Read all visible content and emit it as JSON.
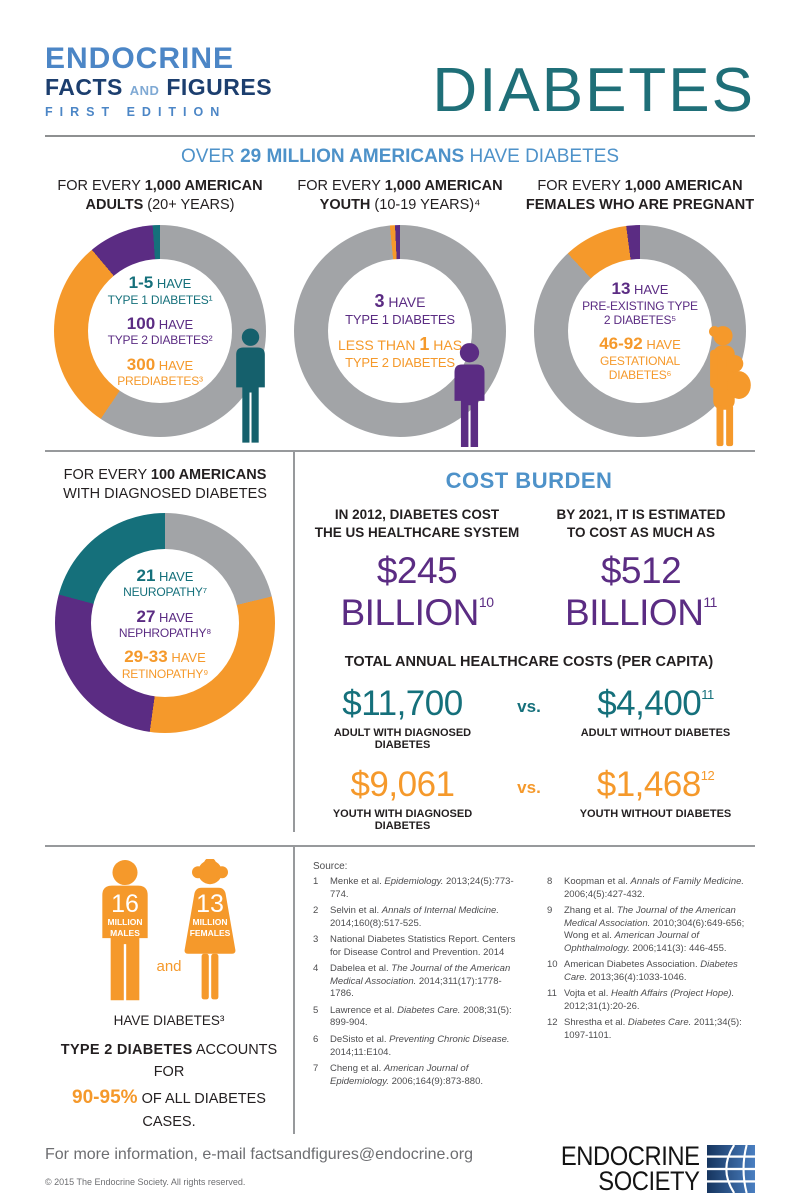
{
  "colors": {
    "orange": "#F5992B",
    "purple": "#5B2C83",
    "teal": "#15707B",
    "donut_gray": "#A2A4A7",
    "heading_blue": "#4E92C9",
    "brand_navy": "#1C3E6E",
    "brand_blue": "#4C86C6",
    "title_teal": "#1F6F78",
    "dark_text": "#231F20",
    "line_gray": "#97999C",
    "footer_gray": "#6D6E71"
  },
  "header": {
    "brand_line1": "ENDOCRINE",
    "brand_line2_a": "FACTS ",
    "brand_line2_and": "AND",
    "brand_line2_b": " FIGURES",
    "brand_line3": "FIRST EDITION",
    "title": "DIABETES",
    "subtitle_pre": "OVER ",
    "subtitle_bold": "29 MILLION AMERICANS",
    "subtitle_post": " HAVE DIABETES"
  },
  "donuts": [
    {
      "h1pre": "FOR EVERY ",
      "h1bold": "1,000 AMERICAN",
      "h2bold": "ADULTS",
      "h2rest": " (20+ YEARS)",
      "stats": [
        {
          "pre": "",
          "num": "1-5",
          "rest": " HAVE",
          "label": "TYPE 1 DIABETES¹"
        },
        {
          "pre": "",
          "num": "100",
          "rest": " HAVE",
          "label": "TYPE 2 DIABETES²"
        },
        {
          "pre": "",
          "num": "300",
          "rest": " HAVE",
          "label": "PREDIABETES³"
        }
      ]
    },
    {
      "h1pre": "FOR EVERY ",
      "h1bold": "1,000 AMERICAN",
      "h2bold": "YOUTH",
      "h2rest": " (10-19 YEARS)⁴",
      "stats": [
        {
          "pre": "",
          "num": "3",
          "rest": " HAVE",
          "label": "TYPE 1 DIABETES"
        },
        {
          "pre": "LESS THAN ",
          "num": "1",
          "rest": " HAS",
          "label": "TYPE 2 DIABETES"
        }
      ]
    },
    {
      "h1pre": "FOR EVERY ",
      "h1bold": "1,000 AMERICAN",
      "h2bold": "FEMALES WHO ARE PREGNANT",
      "h2rest": "",
      "stats": [
        {
          "pre": "",
          "num": "13",
          "rest": " HAVE",
          "label": "PRE-EXISTING TYPE 2 DIABETES⁵"
        },
        {
          "pre": "",
          "num": "46-92",
          "rest": " HAVE",
          "label": "GESTATIONAL DIABETES⁶"
        }
      ]
    },
    {
      "h1pre": "FOR EVERY ",
      "h1bold": "100 AMERICANS",
      "h2bold": "",
      "h2rest": "WITH DIAGNOSED DIABETES",
      "stats": [
        {
          "pre": "",
          "num": "21",
          "rest": " HAVE",
          "label": "NEUROPATHY⁷"
        },
        {
          "pre": "",
          "num": "27",
          "rest": " HAVE",
          "label": "NEPHROPATHY⁸"
        },
        {
          "pre": "",
          "num": "29-33",
          "rest": " HAVE",
          "label": "RETINOPATHY⁹"
        }
      ]
    }
  ],
  "cost": {
    "title": "COST BURDEN",
    "blocks": [
      {
        "line1": "IN 2012, DIABETES COST",
        "line2": "THE US HEALTHCARE SYSTEM",
        "amount": "$245 BILLION",
        "sup": "10"
      },
      {
        "line1": "BY 2021, IT IS ESTIMATED",
        "line2": "TO COST AS MUCH AS",
        "amount": "$512 BILLION",
        "sup": "11"
      }
    ],
    "percap_title": "TOTAL ANNUAL HEALTHCARE COSTS (PER CAPITA)",
    "rows": [
      {
        "left_amount": "$11,700",
        "left_sup": "",
        "left_label": "ADULT WITH DIAGNOSED DIABETES",
        "vs": "vs.",
        "right_amount": "$4,400",
        "right_sup": "11",
        "right_label": "ADULT WITHOUT DIABETES"
      },
      {
        "left_amount": "$9,061",
        "left_sup": "",
        "left_label": "YOUTH WITH DIAGNOSED DIABETES",
        "vs": "vs.",
        "right_amount": "$1,468",
        "right_sup": "12",
        "right_label": "YOUTH WITHOUT DIABETES"
      }
    ]
  },
  "population": {
    "male_num": "16",
    "male_line1": "MILLION",
    "male_line2": "MALES",
    "female_num": "13",
    "female_line1": "MILLION",
    "female_line2": "FEMALES",
    "and_label": "and",
    "caption": "HAVE DIABETES³",
    "type2_bold": "TYPE 2 DIABETES",
    "type2_rest": " ACCOUNTS FOR",
    "pct": "90-95%",
    "pct_rest": " OF ALL DIABETES CASES."
  },
  "sources": {
    "label": "Source:",
    "col1": [
      {
        "n": "1",
        "segs": [
          [
            "Menke et al. ",
            false
          ],
          [
            "Epidemiology.",
            true
          ],
          [
            " 2013;24(5):773-774.",
            false
          ]
        ]
      },
      {
        "n": "2",
        "segs": [
          [
            "Selvin et al. ",
            false
          ],
          [
            "Annals of Internal Medicine.",
            true
          ],
          [
            " 2014;160(8):517-525.",
            false
          ]
        ]
      },
      {
        "n": "3",
        "segs": [
          [
            "National Diabetes Statistics Report. Centers for Disease Control and Prevention. 2014",
            false
          ]
        ]
      },
      {
        "n": "4",
        "segs": [
          [
            "Dabelea et al. ",
            false
          ],
          [
            "The Journal of the American Medical Association.",
            true
          ],
          [
            " 2014;311(17):1778-1786.",
            false
          ]
        ]
      },
      {
        "n": "5",
        "segs": [
          [
            "Lawrence et al. ",
            false
          ],
          [
            "Diabetes Care.",
            true
          ],
          [
            " 2008;31(5): 899-904.",
            false
          ]
        ]
      },
      {
        "n": "6",
        "segs": [
          [
            "DeSisto et al. ",
            false
          ],
          [
            "Preventing Chronic Disease.",
            true
          ],
          [
            " 2014;11:E104.",
            false
          ]
        ]
      },
      {
        "n": "7",
        "segs": [
          [
            "Cheng et al. ",
            false
          ],
          [
            "American Journal of Epidemiology.",
            true
          ],
          [
            " 2006;164(9):873-880.",
            false
          ]
        ]
      }
    ],
    "col2": [
      {
        "n": "8",
        "segs": [
          [
            "Koopman et al. ",
            false
          ],
          [
            "Annals of Family Medicine.",
            true
          ],
          [
            " 2006;4(5):427-432.",
            false
          ]
        ]
      },
      {
        "n": "9",
        "segs": [
          [
            "Zhang et al. ",
            false
          ],
          [
            "The Journal of the American Medical Association.",
            true
          ],
          [
            " 2010;304(6):649-656; Wong et al. ",
            false
          ],
          [
            "American Journal of Ophthalmology.",
            true
          ],
          [
            " 2006;141(3): 446-455.",
            false
          ]
        ]
      },
      {
        "n": "10",
        "segs": [
          [
            "American Diabetes Association. ",
            false
          ],
          [
            "Diabetes Care.",
            true
          ],
          [
            " 2013;36(4):1033-1046.",
            false
          ]
        ]
      },
      {
        "n": "11",
        "segs": [
          [
            "Vojta et al. ",
            false
          ],
          [
            "Health Affairs (Project Hope).",
            true
          ],
          [
            " 2012;31(1):20-26.",
            false
          ]
        ]
      },
      {
        "n": "12",
        "segs": [
          [
            "Shrestha et al. ",
            false
          ],
          [
            "Diabetes Care.",
            true
          ],
          [
            " 2011;34(5): 1097-1101.",
            false
          ]
        ]
      }
    ]
  },
  "footer": {
    "info": "For more information, e-mail factsandfigures@endocrine.org",
    "copyright": "© 2015 The Endocrine Society. All rights reserved.",
    "org_line1": "ENDOCRINE",
    "org_line2": "SOCIETY"
  },
  "chart_data": [
    {
      "type": "pie",
      "title": "For every 1,000 American adults (20+ years)",
      "slices": [
        {
          "label": "Type 1 diabetes",
          "value": 5,
          "display": "1-5",
          "color": "#15707B"
        },
        {
          "label": "Type 2 diabetes",
          "value": 100,
          "display": "100",
          "color": "#5B2C83"
        },
        {
          "label": "Prediabetes",
          "value": 300,
          "display": "300",
          "color": "#F5992B"
        },
        {
          "label": "Remainder of 1,000",
          "value": 595,
          "color": "#A2A4A7"
        }
      ]
    },
    {
      "type": "pie",
      "title": "For every 1,000 American youth (10-19 years)",
      "slices": [
        {
          "label": "Type 1 diabetes",
          "value": 3,
          "display": "3",
          "color": "#5B2C83"
        },
        {
          "label": "Type 2 diabetes",
          "value": 1,
          "display": "less than 1",
          "color": "#F5992B"
        },
        {
          "label": "Remainder of 1,000",
          "value": 996,
          "color": "#A2A4A7"
        }
      ]
    },
    {
      "type": "pie",
      "title": "For every 1,000 American females who are pregnant",
      "slices": [
        {
          "label": "Pre-existing type 2 diabetes",
          "value": 13,
          "display": "13",
          "color": "#5B2C83"
        },
        {
          "label": "Gestational diabetes",
          "value": 69,
          "display": "46-92",
          "color": "#F5992B"
        },
        {
          "label": "Remainder of 1,000",
          "value": 918,
          "color": "#A2A4A7"
        }
      ]
    },
    {
      "type": "pie",
      "title": "For every 100 Americans with diagnosed diabetes",
      "slices": [
        {
          "label": "Neuropathy",
          "value": 21,
          "display": "21",
          "color": "#15707B"
        },
        {
          "label": "Nephropathy",
          "value": 27,
          "display": "27",
          "color": "#5B2C83"
        },
        {
          "label": "Retinopathy",
          "value": 31,
          "display": "29-33",
          "color": "#F5992B"
        },
        {
          "label": "Remainder of 100",
          "value": 21,
          "color": "#A2A4A7"
        }
      ]
    }
  ]
}
